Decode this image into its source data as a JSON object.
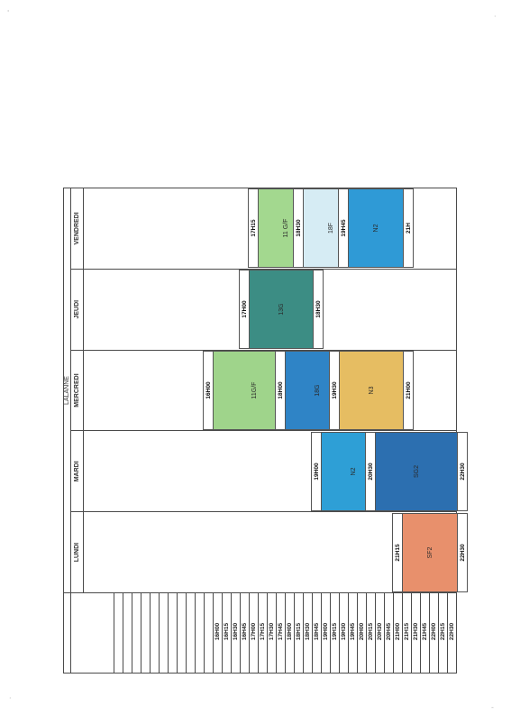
{
  "title": "LALANNE",
  "days": [
    "LUNDI",
    "MARDI",
    "MERCREDI",
    "JEUDI",
    "VENDREDI"
  ],
  "times": [
    "16H00",
    "16H15",
    "16H30",
    "16H45",
    "17H00",
    "17H15",
    "17H30",
    "17H45",
    "18H00",
    "18H15",
    "18H30",
    "18H45",
    "19H00",
    "19H15",
    "19H30",
    "19H45",
    "20H00",
    "20H15",
    "20H30",
    "20H45",
    "21H00",
    "21H15",
    "21H30",
    "21H45",
    "22H00",
    "22H15",
    "22H30"
  ],
  "sessions": [
    {
      "day": 0,
      "start": "21H15",
      "end": "22H30",
      "label": "SF2",
      "color": "#e8906c"
    },
    {
      "day": 1,
      "start": "19H00",
      "end": "20H30",
      "label": "N2",
      "color": "#2e9fd6"
    },
    {
      "day": 1,
      "start": "20H30",
      "end": "22H30",
      "label": "SG2",
      "color": "#2c6fb0"
    },
    {
      "day": 2,
      "start": "16H00",
      "end": "18H00",
      "label": "11G/F",
      "color": "#9fd48b"
    },
    {
      "day": 2,
      "start": "18H00",
      "end": "19H30",
      "label": "18G",
      "color": "#2f84c6"
    },
    {
      "day": 2,
      "start": "19H30",
      "end": "21H00",
      "label": "N3",
      "color": "#e6bd62"
    },
    {
      "day": 3,
      "start": "17H00",
      "end": "18H30",
      "label": "13G",
      "color": "#3c8d84"
    },
    {
      "day": 4,
      "start": "17H15",
      "end": "18H30",
      "label": "11 G/F",
      "color": "#a3d88f"
    },
    {
      "day": 4,
      "start": "18H30",
      "end": "19H45",
      "label": "18F",
      "color": "#d6ecf4"
    },
    {
      "day": 4,
      "start": "19H45",
      "end": "21H",
      "label": "N2",
      "color": "#2f9ad6"
    }
  ]
}
